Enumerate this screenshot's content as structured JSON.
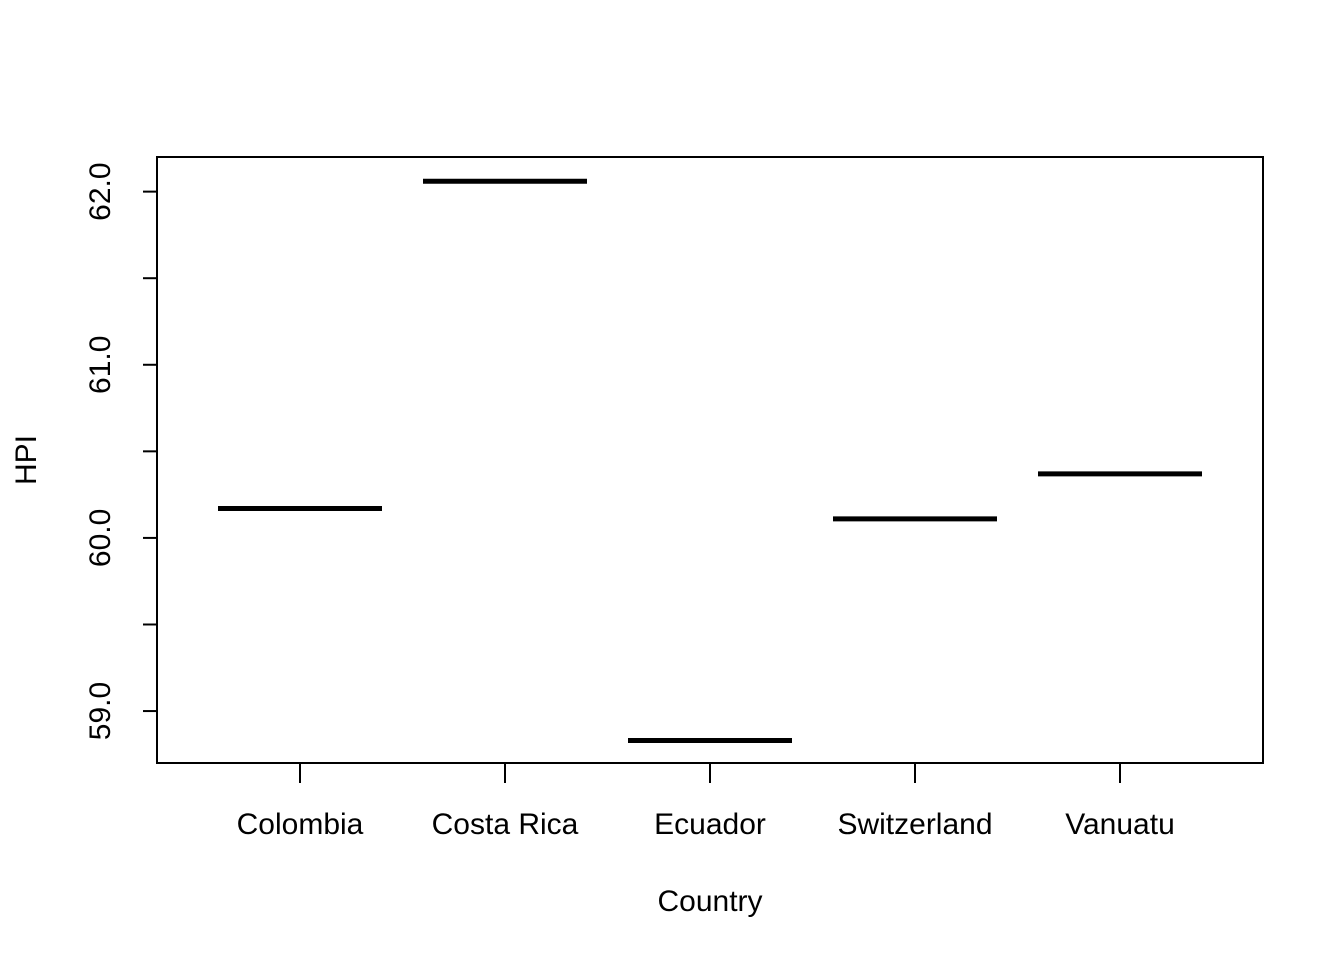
{
  "chart_data": {
    "type": "boxplot",
    "title": "",
    "xlabel": "Country",
    "ylabel": "HPI",
    "categories": [
      "Colombia",
      "Costa Rica",
      "Ecuador",
      "Switzerland",
      "Vanuatu"
    ],
    "values": [
      60.17,
      62.06,
      58.83,
      60.11,
      60.37
    ],
    "ylim": [
      58.7,
      62.2
    ],
    "yticks": [
      59.0,
      59.5,
      60.0,
      60.5,
      61.0,
      61.5,
      62.0
    ],
    "ytick_labels": [
      "59.0",
      "",
      "60.0",
      "",
      "61.0",
      "",
      "62.0"
    ],
    "grid": false,
    "legend": "none"
  }
}
